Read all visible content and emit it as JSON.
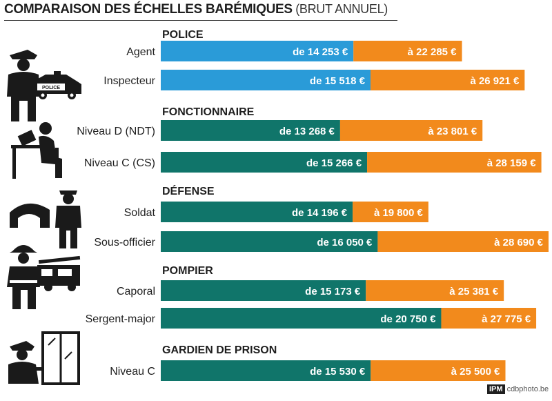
{
  "chart_data": {
    "type": "bar",
    "title": "COMPARAISON DES ÉCHELLES BARÉMIQUES",
    "subtitle": "(BRUT ANNUEL)",
    "groups": [
      {
        "name": "POLICE",
        "icon": "police-officer-icon",
        "rows": [
          {
            "label": "Agent",
            "from": 14253,
            "to": 22285,
            "from_label": "de 14 253 €",
            "to_label": "à 22 285 €"
          },
          {
            "label": "Inspecteur",
            "from": 15518,
            "to": 26921,
            "from_label": "de 15 518 €",
            "to_label": "à 26 921 €"
          }
        ]
      },
      {
        "name": "FONCTIONNAIRE",
        "icon": "office-worker-icon",
        "rows": [
          {
            "label": "Niveau D (NDT)",
            "from": 13268,
            "to": 23801,
            "from_label": "de 13 268 €",
            "to_label": "à 23 801 €"
          },
          {
            "label": "Niveau C (CS)",
            "from": 15266,
            "to": 28159,
            "from_label": "de 15 266 €",
            "to_label": "à 28 159 €"
          }
        ]
      },
      {
        "name": "DÉFENSE",
        "icon": "soldier-icon",
        "rows": [
          {
            "label": "Soldat",
            "from": 14196,
            "to": 19800,
            "from_label": "de 14 196 €",
            "to_label": "à 19 800 €"
          },
          {
            "label": "Sous-officier",
            "from": 16050,
            "to": 28690,
            "from_label": "de 16 050 €",
            "to_label": "à 28 690 €"
          }
        ]
      },
      {
        "name": "POMPIER",
        "icon": "firefighter-icon",
        "rows": [
          {
            "label": "Caporal",
            "from": 15173,
            "to": 25381,
            "from_label": "de 15 173 €",
            "to_label": "à 25 381 €"
          },
          {
            "label": "Sergent-major",
            "from": 20750,
            "to": 27775,
            "from_label": "de 20 750 €",
            "to_label": "à 27 775 €"
          }
        ]
      },
      {
        "name": "GARDIEN DE PRISON",
        "icon": "prison-guard-icon",
        "rows": [
          {
            "label": "Niveau C",
            "from": 15530,
            "to": 25500,
            "from_label": "de 15 530 €",
            "to_label": "à 25 500 €"
          }
        ]
      }
    ],
    "xlim": [
      0,
      28690
    ],
    "colors": {
      "police": "#2a9bd8",
      "other": "#10756a",
      "max": "#f28a1c",
      "text": "#1f1f1f",
      "icon": "#1a1a1a"
    }
  },
  "footer": {
    "brand": "IPM",
    "credit": "cdbphoto.be"
  },
  "police_car_text": "POLICE"
}
